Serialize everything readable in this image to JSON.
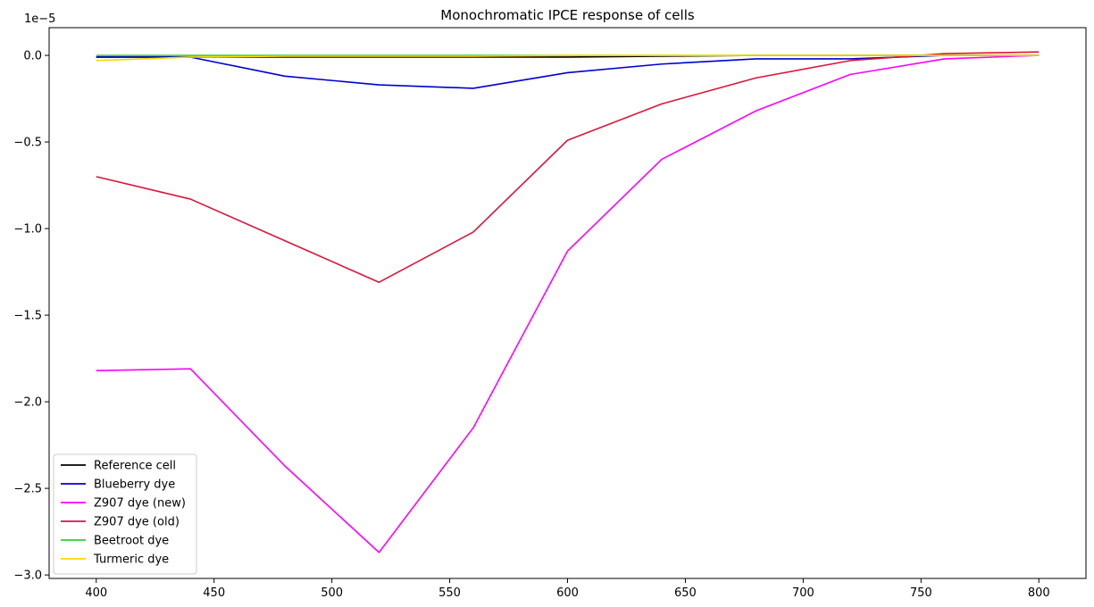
{
  "chart_data": {
    "type": "line",
    "title": "Monochromatic IPCE response of cells",
    "xlabel": "",
    "ylabel": "",
    "y_offset_label": "1e−5",
    "xlim": [
      380,
      820
    ],
    "ylim": [
      -3.02e-05,
      1.6e-06
    ],
    "xticks": [
      400,
      450,
      500,
      550,
      600,
      650,
      700,
      750,
      800
    ],
    "xtick_labels": [
      "400",
      "450",
      "500",
      "550",
      "600",
      "650",
      "700",
      "750",
      "800"
    ],
    "yticks": [
      0,
      -5e-06,
      -1e-05,
      -1.5e-05,
      -2e-05,
      -2.5e-05,
      -3e-05
    ],
    "ytick_labels": [
      "0.0",
      "−0.5",
      "−1.0",
      "−1.5",
      "−2.0",
      "−2.5",
      "−3.0"
    ],
    "grid": false,
    "legend_position": "lower-left",
    "x": [
      400,
      440,
      480,
      520,
      560,
      600,
      640,
      680,
      720,
      760,
      800
    ],
    "series": [
      {
        "name": "Reference cell",
        "color": "#000000",
        "values": [
          -1e-07,
          -1e-07,
          -1e-07,
          -1e-07,
          -1e-07,
          -1e-07,
          -5e-08,
          0,
          0,
          0,
          0
        ]
      },
      {
        "name": "Blueberry dye",
        "color": "#0000cc",
        "values": [
          -1e-07,
          -1e-07,
          -1.2e-06,
          -1.7e-06,
          -1.9e-06,
          -1e-06,
          -5e-07,
          -2e-07,
          -2e-07,
          0,
          0
        ]
      },
      {
        "name": "Z907 dye (new)",
        "color": "#ff00ff",
        "values": [
          -1.82e-05,
          -1.81e-05,
          -2.37e-05,
          -2.87e-05,
          -2.15e-05,
          -1.13e-05,
          -6e-06,
          -3.2e-06,
          -1.1e-06,
          -2e-07,
          0
        ]
      },
      {
        "name": "Z907 dye (old)",
        "color": "#dc143c",
        "values": [
          -7e-06,
          -8.3e-06,
          -1.07e-05,
          -1.31e-05,
          -1.02e-05,
          -4.9e-06,
          -2.8e-06,
          -1.3e-06,
          -3e-07,
          1e-07,
          2e-07
        ]
      },
      {
        "name": "Beetroot dye",
        "color": "#32cd32",
        "values": [
          0,
          0,
          0,
          0,
          0,
          0,
          0,
          0,
          0,
          0,
          0
        ]
      },
      {
        "name": "Turmeric dye",
        "color": "#ffd700",
        "values": [
          -3e-07,
          -1e-07,
          -5e-08,
          -5e-08,
          -5e-08,
          0,
          0,
          0,
          0,
          0,
          0
        ]
      }
    ]
  }
}
